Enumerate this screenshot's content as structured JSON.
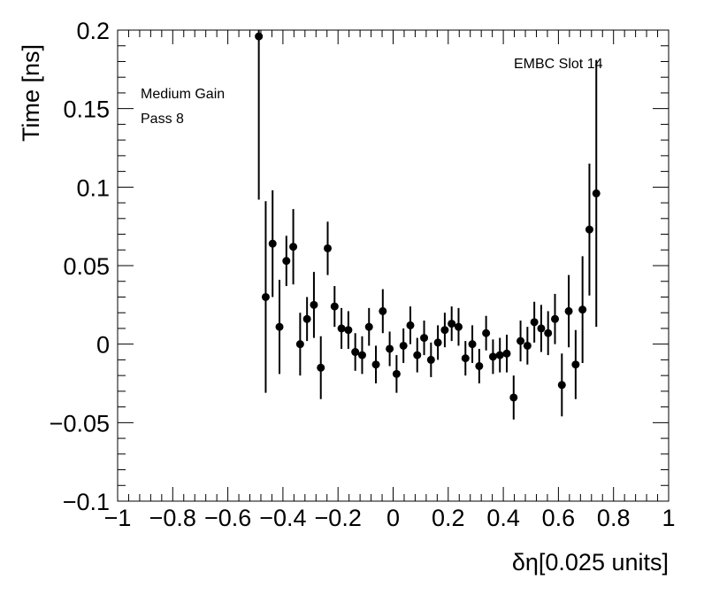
{
  "chart_data": {
    "type": "scatter",
    "xlabel": "δη[0.025 units]",
    "ylabel": "Time [ns]",
    "xlim": [
      -1,
      1
    ],
    "ylim": [
      -0.1,
      0.2
    ],
    "x_tick_labels": [
      "−1",
      "−0.8",
      "−0.6",
      "−0.4",
      "−0.2",
      "0",
      "0.2",
      "0.4",
      "0.6",
      "0.8",
      "1"
    ],
    "x_tick_values": [
      -1,
      -0.8,
      -0.6,
      -0.4,
      -0.2,
      0,
      0.2,
      0.4,
      0.6,
      0.8,
      1
    ],
    "y_tick_labels": [
      "−0.1",
      "−0.05",
      "0",
      "0.05",
      "0.1",
      "0.15",
      "0.2"
    ],
    "y_tick_values": [
      -0.1,
      -0.05,
      0,
      0.05,
      0.1,
      0.15,
      0.2
    ],
    "grid": false,
    "annotations": {
      "top_right": "EMBC Slot 14",
      "top_left_line1": "Medium Gain",
      "top_left_line2": "Pass 8"
    },
    "points": [
      {
        "x": -0.4875,
        "y": 0.196,
        "err": 0.104
      },
      {
        "x": -0.4625,
        "y": 0.03,
        "err": 0.061
      },
      {
        "x": -0.4375,
        "y": 0.064,
        "err": 0.034
      },
      {
        "x": -0.4125,
        "y": 0.011,
        "err": 0.03
      },
      {
        "x": -0.3875,
        "y": 0.053,
        "err": 0.016
      },
      {
        "x": -0.3625,
        "y": 0.062,
        "err": 0.024
      },
      {
        "x": -0.3375,
        "y": 0.0,
        "err": 0.02
      },
      {
        "x": -0.3125,
        "y": 0.016,
        "err": 0.014
      },
      {
        "x": -0.2875,
        "y": 0.025,
        "err": 0.021
      },
      {
        "x": -0.2625,
        "y": -0.015,
        "err": 0.02
      },
      {
        "x": -0.2375,
        "y": 0.061,
        "err": 0.017
      },
      {
        "x": -0.2125,
        "y": 0.024,
        "err": 0.013
      },
      {
        "x": -0.1875,
        "y": 0.01,
        "err": 0.013
      },
      {
        "x": -0.1625,
        "y": 0.009,
        "err": 0.012
      },
      {
        "x": -0.1375,
        "y": -0.005,
        "err": 0.012
      },
      {
        "x": -0.1125,
        "y": -0.007,
        "err": 0.012
      },
      {
        "x": -0.0875,
        "y": 0.011,
        "err": 0.012
      },
      {
        "x": -0.0625,
        "y": -0.013,
        "err": 0.012
      },
      {
        "x": -0.0375,
        "y": 0.021,
        "err": 0.014
      },
      {
        "x": -0.0125,
        "y": -0.003,
        "err": 0.011
      },
      {
        "x": 0.0125,
        "y": -0.019,
        "err": 0.012
      },
      {
        "x": 0.0375,
        "y": -0.001,
        "err": 0.011
      },
      {
        "x": 0.0625,
        "y": 0.012,
        "err": 0.012
      },
      {
        "x": 0.0875,
        "y": -0.007,
        "err": 0.011
      },
      {
        "x": 0.1125,
        "y": 0.004,
        "err": 0.011
      },
      {
        "x": 0.1375,
        "y": -0.01,
        "err": 0.011
      },
      {
        "x": 0.1625,
        "y": 0.001,
        "err": 0.011
      },
      {
        "x": 0.1875,
        "y": 0.009,
        "err": 0.011
      },
      {
        "x": 0.2125,
        "y": 0.013,
        "err": 0.011
      },
      {
        "x": 0.2375,
        "y": 0.011,
        "err": 0.012
      },
      {
        "x": 0.2625,
        "y": -0.009,
        "err": 0.011
      },
      {
        "x": 0.2875,
        "y": 0.0,
        "err": 0.012
      },
      {
        "x": 0.3125,
        "y": -0.014,
        "err": 0.011
      },
      {
        "x": 0.3375,
        "y": 0.007,
        "err": 0.011
      },
      {
        "x": 0.3625,
        "y": -0.008,
        "err": 0.011
      },
      {
        "x": 0.3875,
        "y": -0.007,
        "err": 0.011
      },
      {
        "x": 0.4125,
        "y": -0.006,
        "err": 0.012
      },
      {
        "x": 0.4375,
        "y": -0.034,
        "err": 0.014
      },
      {
        "x": 0.4625,
        "y": 0.002,
        "err": 0.013
      },
      {
        "x": 0.4875,
        "y": -0.001,
        "err": 0.012
      },
      {
        "x": 0.5125,
        "y": 0.014,
        "err": 0.013
      },
      {
        "x": 0.5375,
        "y": 0.01,
        "err": 0.015
      },
      {
        "x": 0.5625,
        "y": 0.007,
        "err": 0.014
      },
      {
        "x": 0.5875,
        "y": 0.016,
        "err": 0.016
      },
      {
        "x": 0.6125,
        "y": -0.026,
        "err": 0.02
      },
      {
        "x": 0.6375,
        "y": 0.021,
        "err": 0.023
      },
      {
        "x": 0.6625,
        "y": -0.013,
        "err": 0.022
      },
      {
        "x": 0.6875,
        "y": 0.022,
        "err": 0.034
      },
      {
        "x": 0.7125,
        "y": 0.073,
        "err": 0.042
      },
      {
        "x": 0.7375,
        "y": 0.096,
        "err": 0.085
      }
    ]
  }
}
